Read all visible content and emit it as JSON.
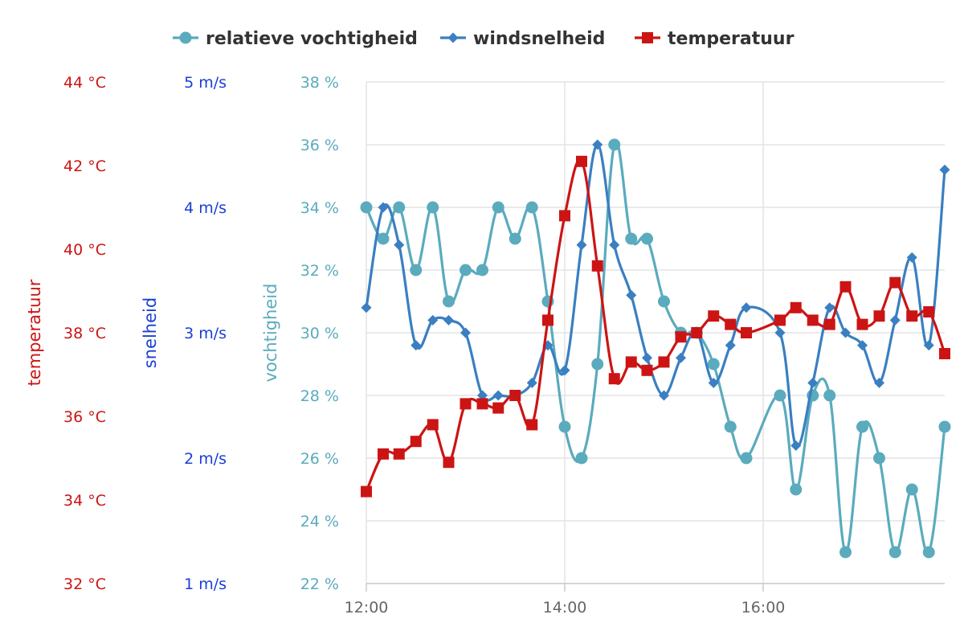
{
  "chart_data": {
    "type": "line",
    "legend_placement": "top-center",
    "grid": true,
    "x_axis": {
      "range_hours": [
        12.0,
        17.83
      ],
      "ticks": [
        {
          "label": "12:00",
          "value": 12
        },
        {
          "label": "14:00",
          "value": 14
        },
        {
          "label": "16:00",
          "value": 16
        }
      ]
    },
    "y_axes": [
      {
        "id": "temp",
        "title": "temperatuur",
        "color": "#cc1414",
        "range": [
          32,
          44
        ],
        "ticks": [
          {
            "label": "44 °C",
            "value": 44
          },
          {
            "label": "42 °C",
            "value": 42
          },
          {
            "label": "40 °C",
            "value": 40
          },
          {
            "label": "38 °C",
            "value": 38
          },
          {
            "label": "36 °C",
            "value": 36
          },
          {
            "label": "34 °C",
            "value": 34
          },
          {
            "label": "32 °C",
            "value": 32
          }
        ]
      },
      {
        "id": "wind",
        "title": "snelheid",
        "color": "#1a3fd6",
        "range": [
          1,
          5
        ],
        "ticks": [
          {
            "label": "5 m/s",
            "value": 5
          },
          {
            "label": "4 m/s",
            "value": 4
          },
          {
            "label": "3 m/s",
            "value": 3
          },
          {
            "label": "2 m/s",
            "value": 2
          },
          {
            "label": "1 m/s",
            "value": 1
          }
        ]
      },
      {
        "id": "hum",
        "title": "vochtigheid",
        "color": "#5aabbd",
        "range": [
          22,
          38
        ],
        "ticks": [
          {
            "label": "38 %",
            "value": 38
          },
          {
            "label": "36 %",
            "value": 36
          },
          {
            "label": "34 %",
            "value": 34
          },
          {
            "label": "32 %",
            "value": 32
          },
          {
            "label": "30 %",
            "value": 30
          },
          {
            "label": "28 %",
            "value": 28
          },
          {
            "label": "26 %",
            "value": 26
          },
          {
            "label": "24 %",
            "value": 24
          },
          {
            "label": "22 %",
            "value": 22
          }
        ]
      }
    ],
    "series": [
      {
        "name": "relatieve vochtigheid",
        "axis": "hum",
        "color": "#5aabbd",
        "marker": "circle",
        "x": [
          12.0,
          12.17,
          12.33,
          12.5,
          12.67,
          12.83,
          13.0,
          13.17,
          13.33,
          13.5,
          13.67,
          13.83,
          14.0,
          14.17,
          14.33,
          14.5,
          14.67,
          14.83,
          15.0,
          15.17,
          15.33,
          15.5,
          15.67,
          15.83,
          16.17,
          16.33,
          16.5,
          16.67,
          16.83,
          17.0,
          17.17,
          17.33,
          17.5,
          17.67,
          17.83
        ],
        "y": [
          34,
          33,
          34,
          32,
          34,
          31,
          32,
          32,
          34,
          33,
          34,
          31,
          27,
          26,
          29,
          36,
          33,
          33,
          31,
          30,
          30,
          29,
          27,
          26,
          28,
          25,
          28,
          28,
          23,
          27,
          26,
          23,
          25,
          23,
          27
        ]
      },
      {
        "name": "windsnelheid",
        "axis": "wind",
        "color": "#3a7fc1",
        "marker": "diamond",
        "x": [
          12.0,
          12.17,
          12.33,
          12.5,
          12.67,
          12.83,
          13.0,
          13.17,
          13.33,
          13.5,
          13.67,
          13.83,
          14.0,
          14.17,
          14.33,
          14.5,
          14.67,
          14.83,
          15.0,
          15.17,
          15.33,
          15.5,
          15.67,
          15.83,
          16.17,
          16.33,
          16.5,
          16.67,
          16.83,
          17.0,
          17.17,
          17.33,
          17.5,
          17.67,
          17.83
        ],
        "y": [
          3.2,
          4.0,
          3.7,
          2.9,
          3.1,
          3.1,
          3.0,
          2.5,
          2.5,
          2.5,
          2.6,
          2.9,
          2.7,
          3.7,
          4.5,
          3.7,
          3.3,
          2.8,
          2.5,
          2.8,
          3.0,
          2.6,
          2.9,
          3.2,
          3.0,
          2.1,
          2.6,
          3.2,
          3.0,
          2.9,
          2.6,
          3.1,
          3.6,
          2.9,
          4.3
        ]
      },
      {
        "name": "temperatuur",
        "axis": "temp",
        "color": "#cc1414",
        "marker": "square",
        "x": [
          12.0,
          12.17,
          12.33,
          12.5,
          12.67,
          12.83,
          13.0,
          13.17,
          13.33,
          13.5,
          13.67,
          13.83,
          14.0,
          14.17,
          14.33,
          14.5,
          14.67,
          14.83,
          15.0,
          15.17,
          15.33,
          15.5,
          15.67,
          15.83,
          16.17,
          16.33,
          16.5,
          16.67,
          16.83,
          17.0,
          17.17,
          17.33,
          17.5,
          17.67,
          17.83
        ],
        "y": [
          34.2,
          35.1,
          35.1,
          35.4,
          35.8,
          34.9,
          36.3,
          36.3,
          36.2,
          36.5,
          35.8,
          38.3,
          40.8,
          42.1,
          39.6,
          36.9,
          37.3,
          37.1,
          37.3,
          37.9,
          38.0,
          38.4,
          38.2,
          38.0,
          38.3,
          38.6,
          38.3,
          38.2,
          39.1,
          38.2,
          38.4,
          39.2,
          38.4,
          38.5,
          37.5
        ]
      }
    ]
  }
}
